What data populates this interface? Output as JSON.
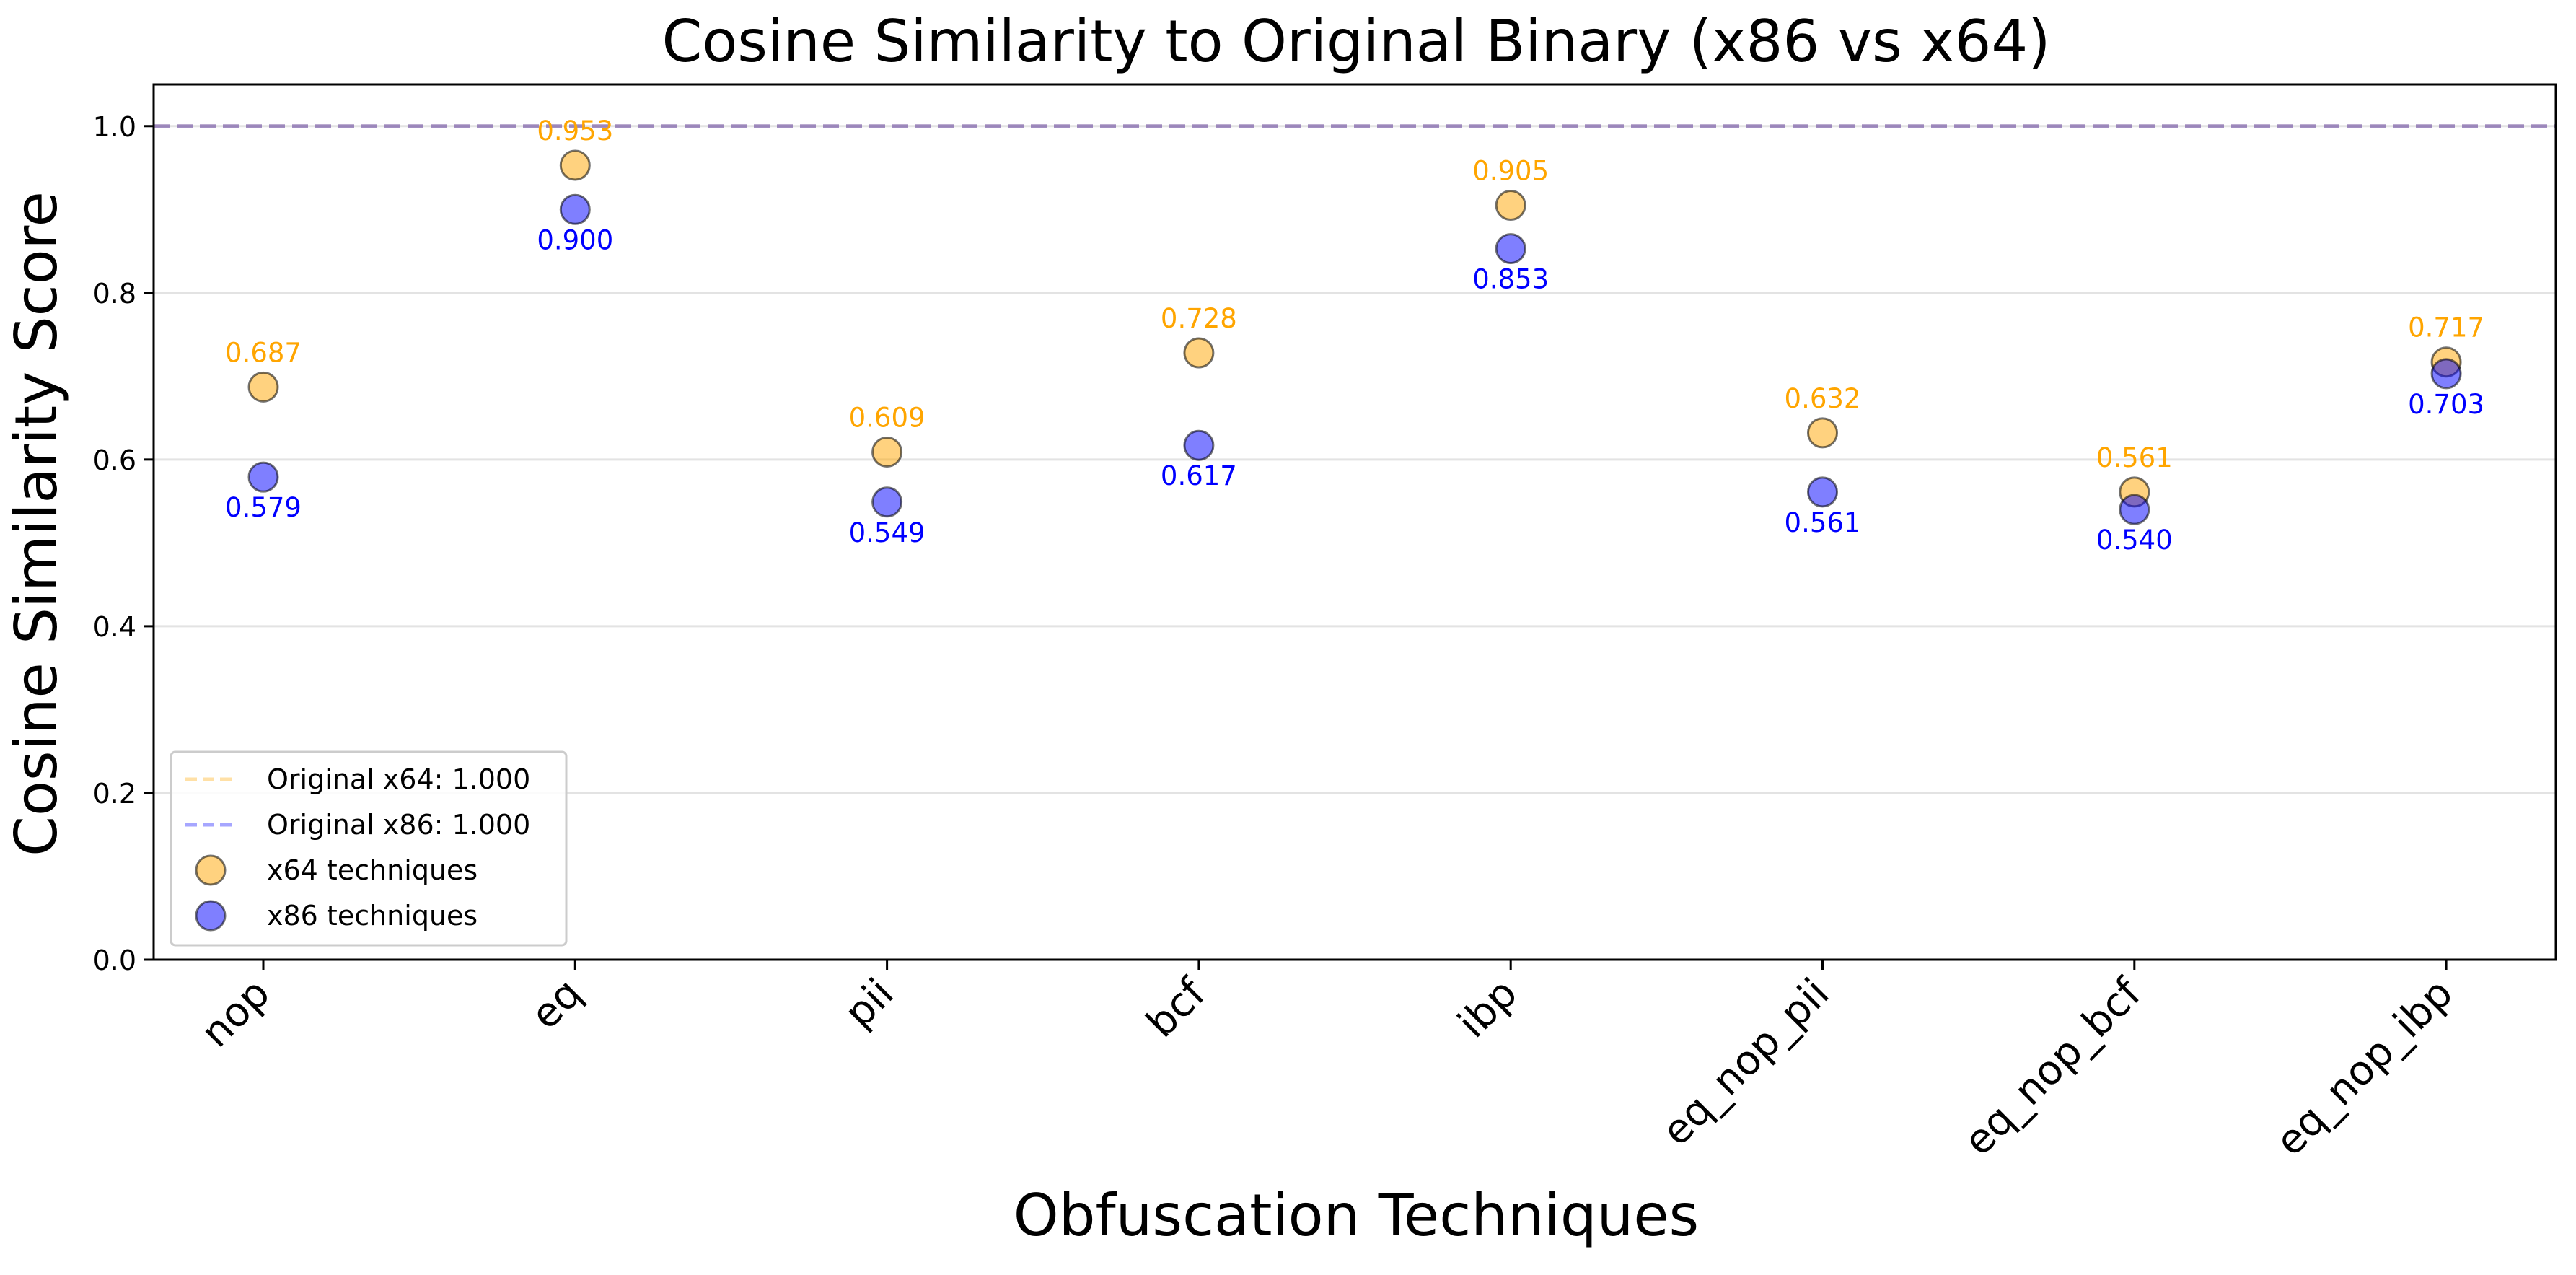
{
  "chart_data": {
    "type": "scatter",
    "title": "Cosine Similarity to Original Binary (x86 vs x64)",
    "xlabel": "Obfuscation Techniques",
    "ylabel": "Cosine Similarity Score",
    "ylim": [
      0,
      1.05
    ],
    "yticks": [
      "0.0",
      "0.2",
      "0.4",
      "0.6",
      "0.8",
      "1.0"
    ],
    "categories": [
      "nop",
      "eq",
      "pii",
      "bcf",
      "ibp",
      "eq_nop_pii",
      "eq_nop_bcf",
      "eq_nop_ibp"
    ],
    "series": [
      {
        "name": "x64 techniques",
        "color": "#FFA500",
        "values": [
          0.687,
          0.953,
          0.609,
          0.728,
          0.905,
          0.632,
          0.561,
          0.717
        ],
        "labels": [
          "0.687",
          "0.953",
          "0.609",
          "0.728",
          "0.905",
          "0.632",
          "0.561",
          "0.717"
        ]
      },
      {
        "name": "x86 techniques",
        "color": "#0000FF",
        "values": [
          0.579,
          0.9,
          0.549,
          0.617,
          0.853,
          0.561,
          0.54,
          0.703
        ],
        "labels": [
          "0.579",
          "0.900",
          "0.549",
          "0.617",
          "0.853",
          "0.561",
          "0.540",
          "0.703"
        ]
      }
    ],
    "reference_lines": [
      {
        "name": "Original x64: 1.000",
        "value": 1.0,
        "color": "#FFA500",
        "style": "dashed"
      },
      {
        "name": "Original x86: 1.000",
        "value": 1.0,
        "color": "#0000FF",
        "style": "dashed"
      }
    ],
    "legend": {
      "placement": "lower-left",
      "entries": [
        "Original x64: 1.000",
        "Original x86: 1.000",
        "x64 techniques",
        "x86 techniques"
      ]
    },
    "grid": "y-only"
  }
}
